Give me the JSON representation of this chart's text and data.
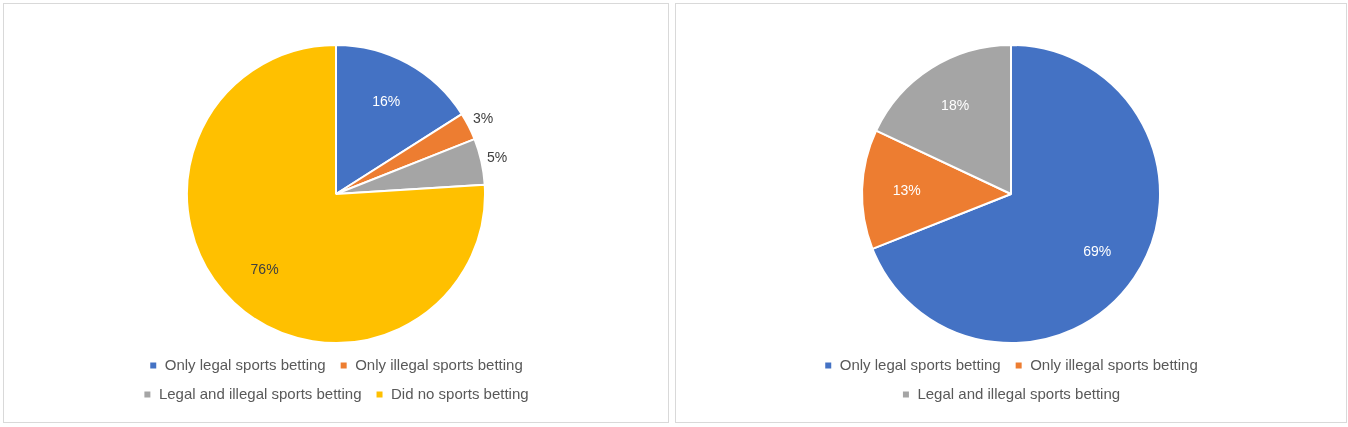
{
  "chart_data": [
    {
      "type": "pie",
      "categories": [
        "Only legal sports betting",
        "Only illegal sports betting",
        "Legal and illegal sports betting",
        "Did no sports betting"
      ],
      "values": [
        16,
        3,
        5,
        76
      ],
      "colors": [
        "#4472c4",
        "#ed7d31",
        "#a5a5a5",
        "#ffc000"
      ],
      "value_labels": [
        "16%",
        "3%",
        "5%",
        "76%"
      ],
      "legend": "bottom"
    },
    {
      "type": "pie",
      "categories": [
        "Only legal sports betting",
        "Only illegal sports betting",
        "Legal and illegal sports betting"
      ],
      "values": [
        69,
        13,
        18
      ],
      "colors": [
        "#4472c4",
        "#ed7d31",
        "#a5a5a5"
      ],
      "value_labels": [
        "69%",
        "13%",
        "18%"
      ],
      "legend": "bottom"
    }
  ]
}
